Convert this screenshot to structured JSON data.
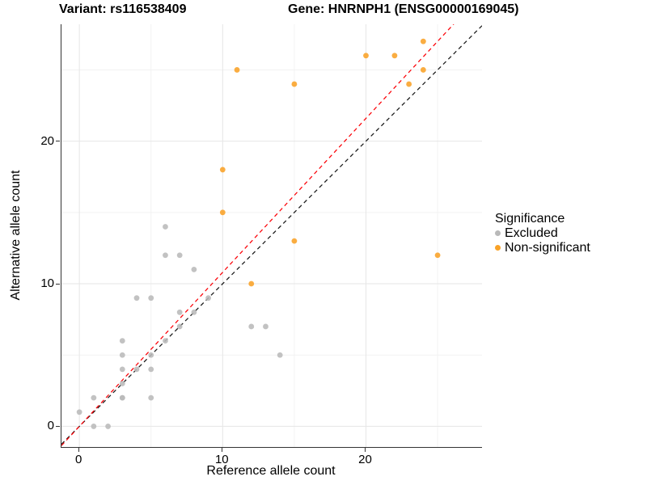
{
  "titles": {
    "variant": "Variant: rs116538409",
    "gene": "Gene: HNRNPH1 (ENSG00000169045)"
  },
  "chart_data": {
    "type": "scatter",
    "xlabel": "Reference allele count",
    "ylabel": "Alternative allele count",
    "xlim": [
      -1.25,
      28.1
    ],
    "ylim": [
      -1.45,
      28.2
    ],
    "x_ticks": [
      0,
      10,
      20
    ],
    "y_ticks": [
      0,
      10,
      20
    ],
    "x_minor_gridlines": [
      5,
      15,
      25
    ],
    "y_minor_gridlines": [
      5,
      15,
      25
    ],
    "grid": "on",
    "legend_position": "right",
    "series": [
      {
        "name": "Excluded",
        "color": "#b9b9b9",
        "points": [
          [
            0,
            1
          ],
          [
            1,
            0
          ],
          [
            1,
            2
          ],
          [
            2,
            0
          ],
          [
            3,
            2
          ],
          [
            3,
            2
          ],
          [
            3,
            3
          ],
          [
            3,
            4
          ],
          [
            3,
            5
          ],
          [
            3,
            6
          ],
          [
            4,
            4
          ],
          [
            4,
            9
          ],
          [
            5,
            2
          ],
          [
            5,
            4
          ],
          [
            5,
            5
          ],
          [
            5,
            9
          ],
          [
            6,
            6
          ],
          [
            6,
            12
          ],
          [
            6,
            14
          ],
          [
            7,
            7
          ],
          [
            7,
            8
          ],
          [
            7,
            12
          ],
          [
            8,
            8
          ],
          [
            8,
            11
          ],
          [
            9,
            9
          ],
          [
            12,
            7
          ],
          [
            13,
            7
          ],
          [
            14,
            5
          ]
        ]
      },
      {
        "name": "Non-significant",
        "color": "#f9a227",
        "points": [
          [
            10,
            15
          ],
          [
            10,
            18
          ],
          [
            11,
            25
          ],
          [
            12,
            10
          ],
          [
            15,
            13
          ],
          [
            15,
            24
          ],
          [
            20,
            26
          ],
          [
            22,
            26
          ],
          [
            23,
            24
          ],
          [
            24,
            25
          ],
          [
            24,
            27
          ],
          [
            25,
            12
          ]
        ]
      }
    ],
    "lines": [
      {
        "name": "identity-line",
        "slope": 1,
        "intercept": 0,
        "color": "#1a1a1a",
        "style": "dashed"
      },
      {
        "name": "expected-ratio-line",
        "slope": 1.08,
        "intercept": 0,
        "color": "#fb0006",
        "style": "dashed"
      }
    ],
    "colors": {
      "major_gridline": "#e6e6e6",
      "minor_gridline": "#f2f2f2",
      "axis_line": "#333333"
    }
  },
  "legend": {
    "title": "Significance",
    "items": [
      {
        "label": "Excluded",
        "color": "#b9b9b9"
      },
      {
        "label": "Non-significant",
        "color": "#f9a227"
      }
    ]
  }
}
